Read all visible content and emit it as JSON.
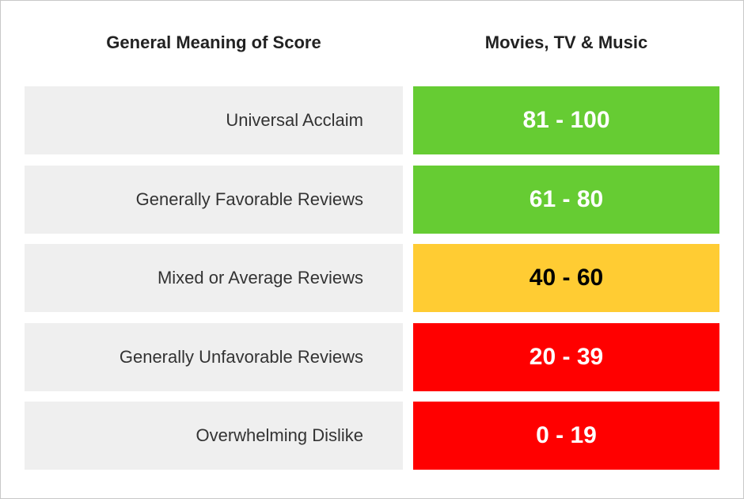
{
  "table": {
    "headers": [
      "General Meaning of Score",
      "Movies, TV & Music"
    ],
    "rows": [
      {
        "meaning": "Universal Acclaim",
        "score": "81 - 100",
        "color": "#66cc33",
        "text_color": "#ffffff"
      },
      {
        "meaning": "Generally Favorable Reviews",
        "score": "61 - 80",
        "color": "#66cc33",
        "text_color": "#ffffff"
      },
      {
        "meaning": "Mixed or Average Reviews",
        "score": "40 - 60",
        "color": "#ffcc33",
        "text_color": "#000000"
      },
      {
        "meaning": "Generally Unfavorable Reviews",
        "score": "20 - 39",
        "color": "#ff0000",
        "text_color": "#ffffff"
      },
      {
        "meaning": "Overwhelming Dislike",
        "score": "0 - 19",
        "color": "#ff0000",
        "text_color": "#ffffff"
      }
    ]
  }
}
